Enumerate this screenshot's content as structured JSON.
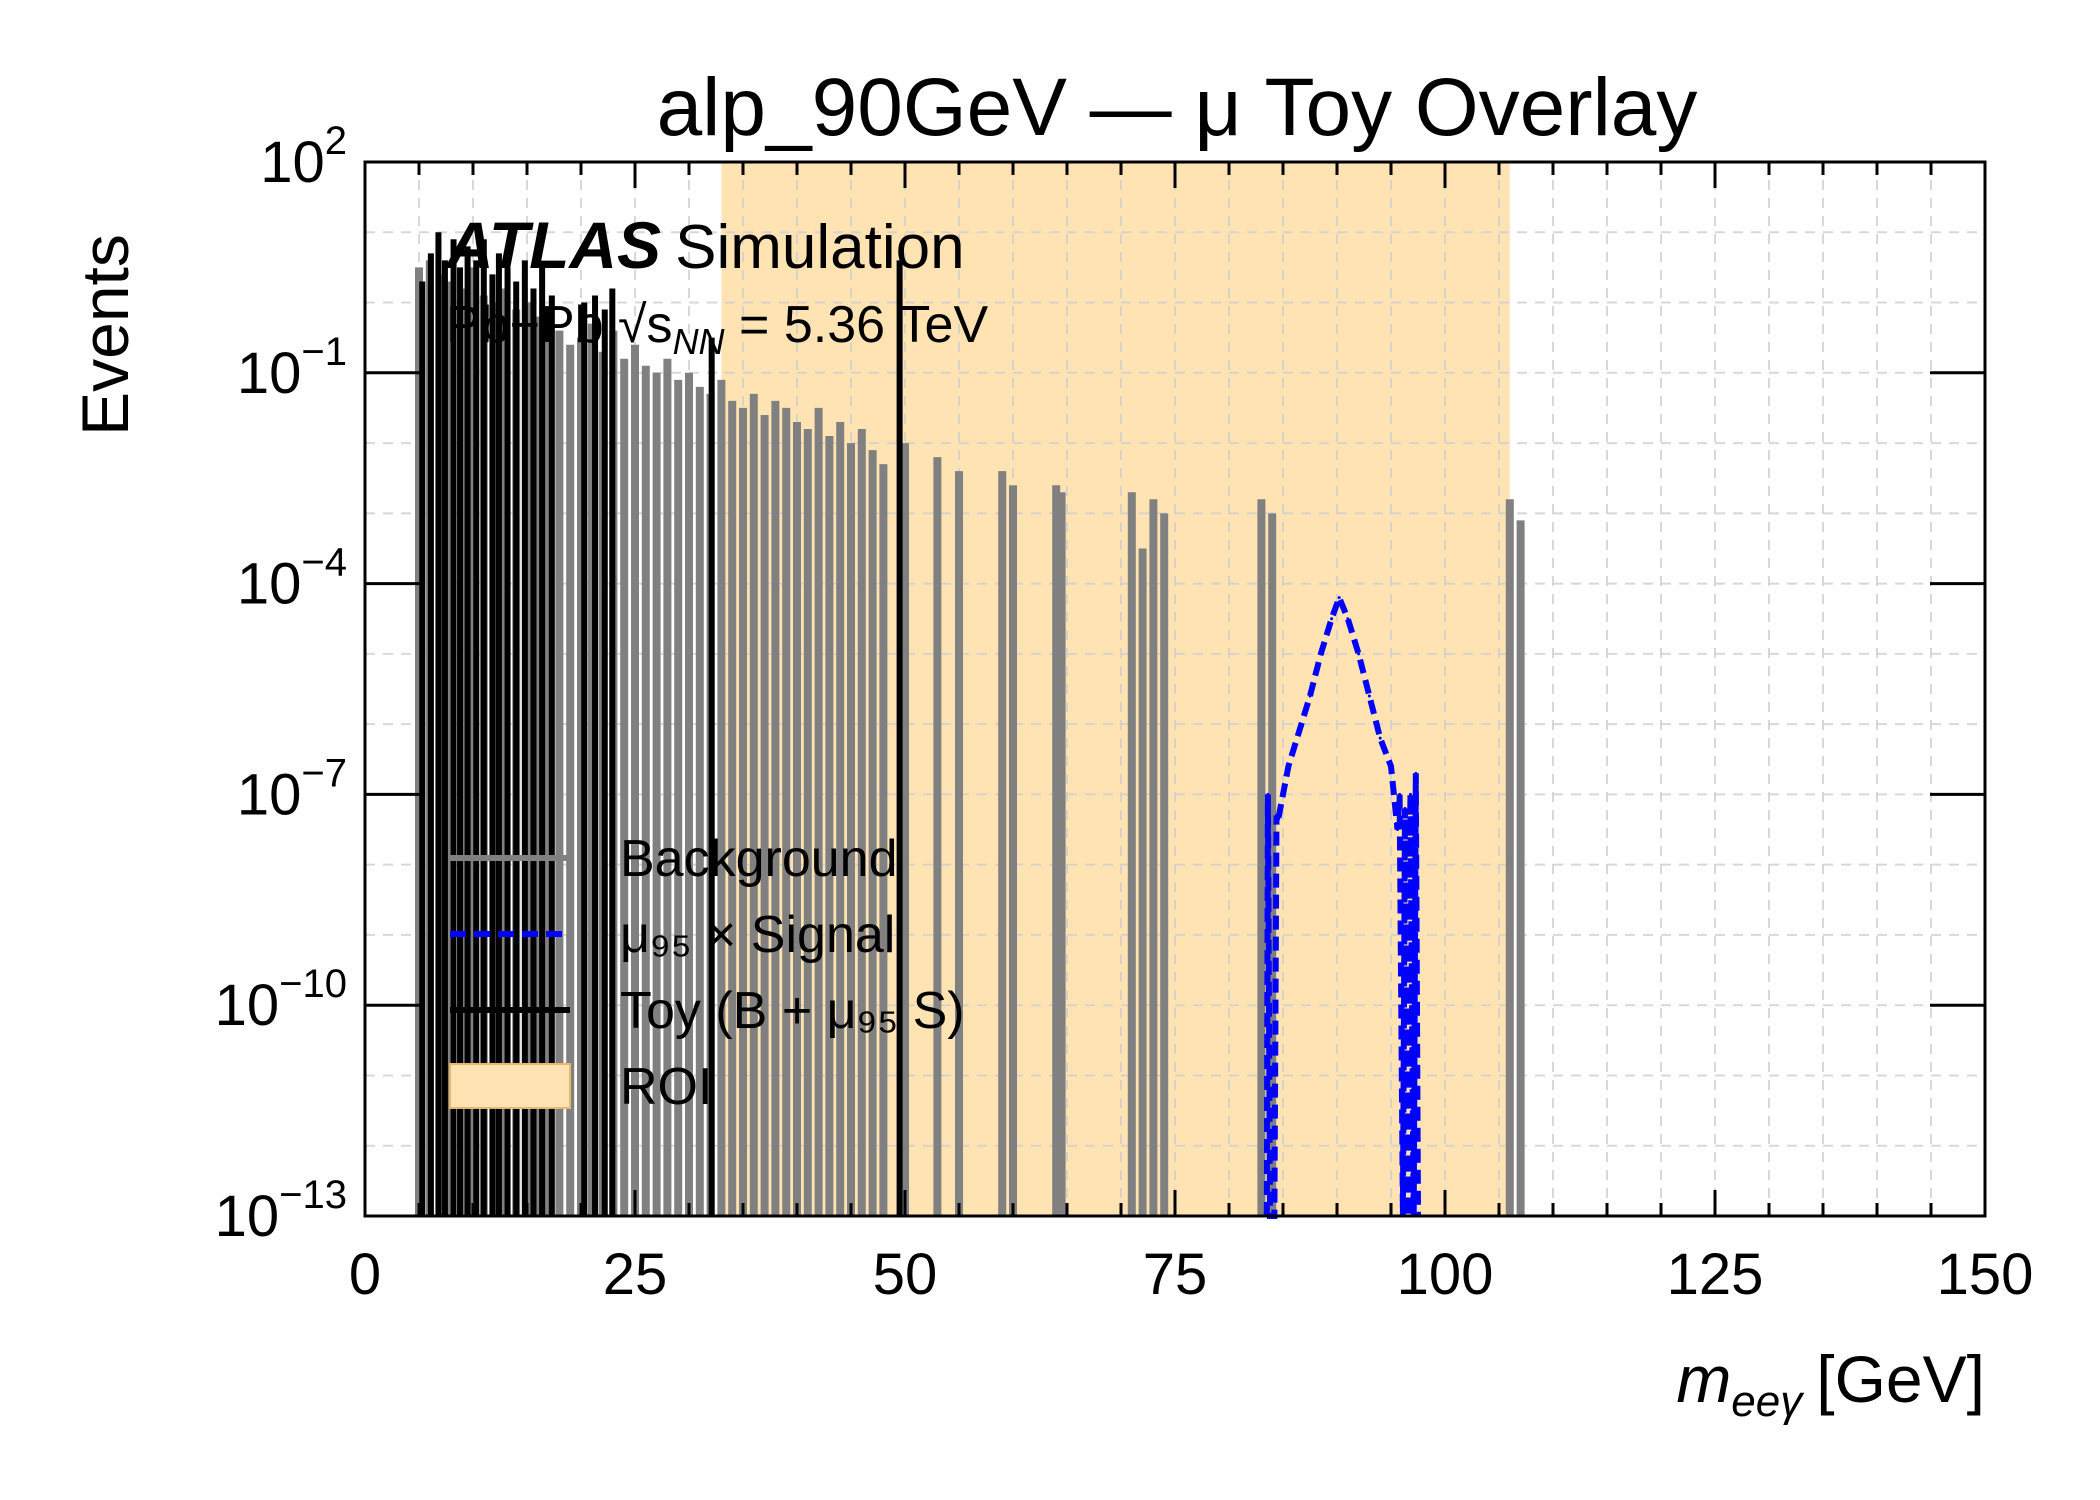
{
  "chart_data": {
    "type": "line",
    "title": "alp_90GeV — μ   Toy Overlay",
    "xlabel_main": "m",
    "xlabel_sub": "eeγ",
    "xlabel_unit": "[GeV]",
    "ylabel": "Events",
    "xlim": [
      0,
      150
    ],
    "ylim_log10": [
      -13,
      2
    ],
    "y_scale": "log",
    "grid": true,
    "x_ticks": [
      "0",
      "25",
      "50",
      "75",
      "100",
      "125",
      "150"
    ],
    "x_tick_values": [
      0,
      25,
      50,
      75,
      100,
      125,
      150
    ],
    "y_ticks": [
      {
        "base": "10",
        "exp": "2",
        "log10": 2
      },
      {
        "base": "10",
        "exp": "−1",
        "log10": -1
      },
      {
        "base": "10",
        "exp": "−4",
        "log10": -4
      },
      {
        "base": "10",
        "exp": "−7",
        "log10": -7
      },
      {
        "base": "10",
        "exp": "−10",
        "log10": -10
      },
      {
        "base": "10",
        "exp": "−13",
        "log10": -13
      }
    ],
    "atlas_label": "ATLAS",
    "atlas_sub": "Simulation",
    "energy_label": "Pb+Pb  √s",
    "energy_sub": "NN",
    "energy_value": " = 5.36 TeV",
    "roi": {
      "xmin": 33,
      "xmax": 106,
      "color": "#ffe3b3"
    },
    "legend": {
      "placement": "lower-left",
      "entries": [
        {
          "label": "Background",
          "style": "solid",
          "color": "#808080"
        },
        {
          "label": "μ₉₅ ×  Signal",
          "style": "dashed",
          "color": "#0000ff"
        },
        {
          "label": "Toy (B + μ₉₅ S)",
          "style": "solid",
          "color": "#000000"
        },
        {
          "label": "ROI",
          "style": "patch",
          "color": "#ffe3b3"
        }
      ]
    },
    "series": [
      {
        "name": "Background",
        "color": "#808080",
        "peaks": [
          {
            "x": 5,
            "log10": 0.5
          },
          {
            "x": 6,
            "log10": 0.6
          },
          {
            "x": 7,
            "log10": 0.4
          },
          {
            "x": 8,
            "log10": 0.3
          },
          {
            "x": 9,
            "log10": 0.2
          },
          {
            "x": 10,
            "log10": 0.5
          },
          {
            "x": 11,
            "log10": 0.1
          },
          {
            "x": 12,
            "log10": 0.0
          },
          {
            "x": 13,
            "log10": 0.2
          },
          {
            "x": 14,
            "log10": -0.1
          },
          {
            "x": 15,
            "log10": 0.0
          },
          {
            "x": 16,
            "log10": -0.2
          },
          {
            "x": 17,
            "log10": -0.1
          },
          {
            "x": 18,
            "log10": -0.4
          },
          {
            "x": 19,
            "log10": -0.6
          },
          {
            "x": 20,
            "log10": -0.5
          },
          {
            "x": 21,
            "log10": -0.3
          },
          {
            "x": 22,
            "log10": -0.7
          },
          {
            "x": 23,
            "log10": -0.4
          },
          {
            "x": 24,
            "log10": -0.8
          },
          {
            "x": 25,
            "log10": -0.6
          },
          {
            "x": 26,
            "log10": -0.9
          },
          {
            "x": 27,
            "log10": -1.0
          },
          {
            "x": 28,
            "log10": -0.8
          },
          {
            "x": 29,
            "log10": -1.1
          },
          {
            "x": 30,
            "log10": -1.0
          },
          {
            "x": 31,
            "log10": -1.2
          },
          {
            "x": 32,
            "log10": -1.3
          },
          {
            "x": 33,
            "log10": -1.1
          },
          {
            "x": 34,
            "log10": -1.4
          },
          {
            "x": 35,
            "log10": -1.5
          },
          {
            "x": 36,
            "log10": -1.3
          },
          {
            "x": 37,
            "log10": -1.6
          },
          {
            "x": 38,
            "log10": -1.4
          },
          {
            "x": 39,
            "log10": -1.5
          },
          {
            "x": 40,
            "log10": -1.7
          },
          {
            "x": 41,
            "log10": -1.8
          },
          {
            "x": 42,
            "log10": -1.5
          },
          {
            "x": 43,
            "log10": -1.9
          },
          {
            "x": 44,
            "log10": -1.7
          },
          {
            "x": 45,
            "log10": -2.0
          },
          {
            "x": 46,
            "log10": -1.8
          },
          {
            "x": 47,
            "log10": -2.1
          },
          {
            "x": 48,
            "log10": -2.3
          },
          {
            "x": 50,
            "log10": -2.0
          },
          {
            "x": 53,
            "log10": -2.2
          },
          {
            "x": 55,
            "log10": -2.4
          },
          {
            "x": 59,
            "log10": -2.4
          },
          {
            "x": 60,
            "log10": -2.6
          },
          {
            "x": 64,
            "log10": -2.6
          },
          {
            "x": 64.5,
            "log10": -2.7
          },
          {
            "x": 71,
            "log10": -2.7
          },
          {
            "x": 72,
            "log10": -3.5
          },
          {
            "x": 73,
            "log10": -2.8
          },
          {
            "x": 74,
            "log10": -3.0
          },
          {
            "x": 83,
            "log10": -2.8
          },
          {
            "x": 84,
            "log10": -3.0
          },
          {
            "x": 106,
            "log10": -2.8
          },
          {
            "x": 107,
            "log10": -3.1
          }
        ]
      },
      {
        "name": "μ₉₅ ×  Signal",
        "color": "#0000ff",
        "points": [
          {
            "x": 83.5,
            "log10": -13
          },
          {
            "x": 83.6,
            "log10": -7.0
          },
          {
            "x": 83.8,
            "log10": -13
          },
          {
            "x": 84.2,
            "log10": -13
          },
          {
            "x": 84.4,
            "log10": -7.3
          },
          {
            "x": 84.5,
            "log10": -7.4
          },
          {
            "x": 85.0,
            "log10": -7.0
          },
          {
            "x": 85.5,
            "log10": -6.6
          },
          {
            "x": 86.5,
            "log10": -6.1
          },
          {
            "x": 87.5,
            "log10": -5.6
          },
          {
            "x": 88.5,
            "log10": -5.0
          },
          {
            "x": 89.5,
            "log10": -4.5
          },
          {
            "x": 90.2,
            "log10": -4.2
          },
          {
            "x": 91.0,
            "log10": -4.5
          },
          {
            "x": 92.0,
            "log10": -5.0
          },
          {
            "x": 93.0,
            "log10": -5.6
          },
          {
            "x": 94.0,
            "log10": -6.2
          },
          {
            "x": 95.0,
            "log10": -6.6
          },
          {
            "x": 95.6,
            "log10": -7.5
          },
          {
            "x": 95.8,
            "log10": -7.0
          },
          {
            "x": 96.1,
            "log10": -13
          },
          {
            "x": 96.3,
            "log10": -7.2
          },
          {
            "x": 96.6,
            "log10": -13
          },
          {
            "x": 96.8,
            "log10": -7.0
          },
          {
            "x": 97.1,
            "log10": -13
          },
          {
            "x": 97.3,
            "log10": -6.7
          },
          {
            "x": 97.5,
            "log10": -13
          }
        ]
      },
      {
        "name": "Toy (B + μ₉₅ S)",
        "color": "#000000",
        "peaks": [
          {
            "x": 5.3,
            "log10": 0.3
          },
          {
            "x": 6.1,
            "log10": 0.7
          },
          {
            "x": 6.8,
            "log10": 1.0
          },
          {
            "x": 7.4,
            "log10": 0.6
          },
          {
            "x": 8.2,
            "log10": 0.9
          },
          {
            "x": 8.8,
            "log10": 0.5
          },
          {
            "x": 9.5,
            "log10": 0.8
          },
          {
            "x": 10.3,
            "log10": 0.6
          },
          {
            "x": 11.0,
            "log10": 0.9
          },
          {
            "x": 11.8,
            "log10": 0.4
          },
          {
            "x": 12.4,
            "log10": 0.7
          },
          {
            "x": 13.2,
            "log10": 0.5
          },
          {
            "x": 14.0,
            "log10": 0.3
          },
          {
            "x": 14.8,
            "log10": 0.6
          },
          {
            "x": 15.6,
            "log10": 0.2
          },
          {
            "x": 16.4,
            "log10": 0.5
          },
          {
            "x": 17.3,
            "log10": 0.1
          },
          {
            "x": 20.3,
            "log10": 0.0
          },
          {
            "x": 21.3,
            "log10": 0.1
          },
          {
            "x": 22.2,
            "log10": -0.1
          },
          {
            "x": 22.9,
            "log10": 0.2
          },
          {
            "x": 32.1,
            "log10": -0.5
          },
          {
            "x": 49.5,
            "log10": 0.6
          }
        ]
      }
    ]
  }
}
